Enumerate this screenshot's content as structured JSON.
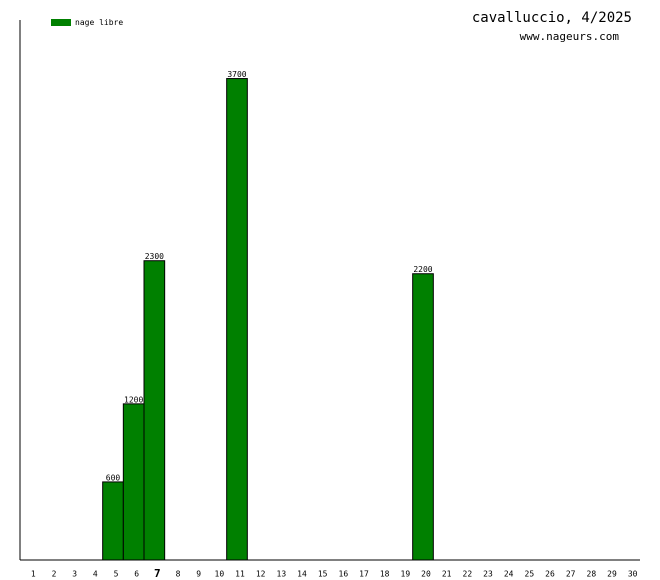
{
  "chart_data": {
    "type": "bar",
    "title": "cavalluccio, 4/2025",
    "subtitle": "www.nageurs.com",
    "categories": [
      "1",
      "2",
      "3",
      "4",
      "5",
      "6",
      "7",
      "8",
      "9",
      "10",
      "11",
      "12",
      "13",
      "14",
      "15",
      "16",
      "17",
      "18",
      "19",
      "20",
      "21",
      "22",
      "23",
      "24",
      "25",
      "26",
      "27",
      "28",
      "29",
      "30"
    ],
    "highlight_index": 6,
    "series": [
      {
        "name": "nage libre",
        "color": "#008000",
        "values": [
          null,
          null,
          null,
          null,
          600,
          1200,
          2300,
          null,
          null,
          null,
          3700,
          null,
          null,
          null,
          null,
          null,
          null,
          null,
          null,
          2200,
          null,
          null,
          null,
          null,
          null,
          null,
          null,
          null,
          null,
          null
        ]
      }
    ],
    "ylim": [
      0,
      4150
    ]
  }
}
